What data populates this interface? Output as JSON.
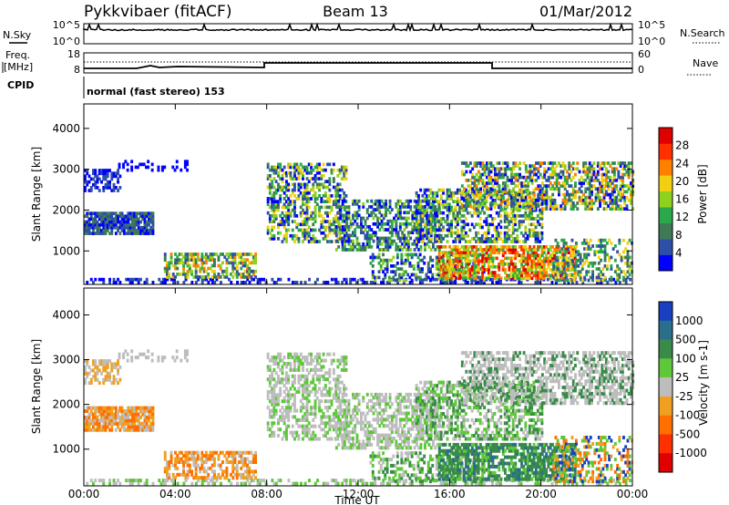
{
  "header": {
    "radar": "Pykkvibaer (fitACF)",
    "beam": "Beam 13",
    "date": "01/Mar/2012"
  },
  "top_panels": {
    "nsky_label": "N.Sky",
    "nsky_ticks": [
      "10^5",
      "10^0"
    ],
    "nsearch_label": "N.Search",
    "nsearch_ticks": [
      "10^5",
      "10^0"
    ],
    "freq_label_1": "Freq.",
    "freq_label_2": "[MHz]",
    "freq_ticks": [
      "18",
      "8"
    ],
    "nave_label": "Nave",
    "nave_ticks": [
      "60",
      "0"
    ],
    "cpid_label": "CPID",
    "cpid_text": "normal (fast stereo) 153"
  },
  "chart_data": [
    {
      "type": "heatmap",
      "name": "power",
      "ylabel": "Slant Range [km]",
      "xlabel": "",
      "yticks": [
        "1000",
        "2000",
        "3000",
        "4000"
      ],
      "ylim": [
        180,
        4600
      ],
      "colorbar_label": "Power [dB]",
      "colorbar_ticks": [
        "4",
        "8",
        "12",
        "16",
        "20",
        "24",
        "28"
      ],
      "colorbar_range": [
        0,
        32
      ],
      "colors": [
        "#0000ff",
        "#2e4fa8",
        "#3d7a55",
        "#2aa84a",
        "#8fd11f",
        "#f0d010",
        "#ff8000",
        "#ff3000",
        "#e00000"
      ]
    },
    {
      "type": "heatmap",
      "name": "velocity",
      "ylabel": "Slant Range [km]",
      "xlabel": "Time UT",
      "xticks": [
        "00:00",
        "04:00",
        "08:00",
        "12:00",
        "16:00",
        "20:00",
        "00:00"
      ],
      "yticks": [
        "1000",
        "2000",
        "3000",
        "4000"
      ],
      "ylim": [
        180,
        4600
      ],
      "colorbar_label": "Velocity [m s-1]",
      "colorbar_ticks": [
        "1000",
        "500",
        "100",
        "25",
        "-25",
        "-100",
        "-500",
        "-1000"
      ],
      "colors": [
        "#1840c0",
        "#2a6f8a",
        "#3a8a4a",
        "#5ec83a",
        "#bdbdbd",
        "#f0a020",
        "#ff7000",
        "#ff3000",
        "#e00000"
      ]
    }
  ]
}
